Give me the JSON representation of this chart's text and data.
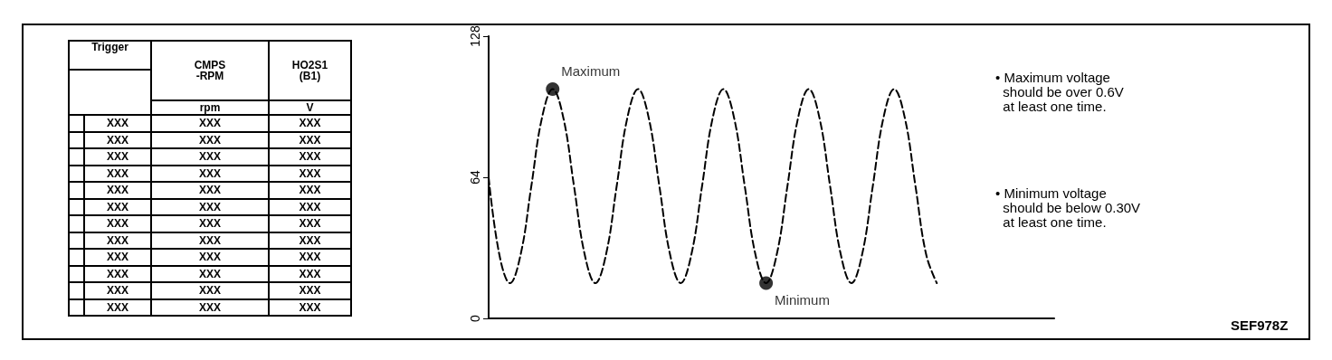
{
  "chart_data": [
    {
      "type": "other",
      "categories": [
        "Trigger",
        "CMPS\n-RPM",
        "HO2S1\n(B1)"
      ],
      "cell_labels": [
        [
          null,
          "rpm",
          "V"
        ],
        [
          "XXX",
          "XXX",
          "XXX"
        ],
        [
          "XXX",
          "XXX",
          "XXX"
        ],
        [
          "XXX",
          "XXX",
          "XXX"
        ],
        [
          "XXX",
          "XXX",
          "XXX"
        ],
        [
          "XXX",
          "XXX",
          "XXX"
        ],
        [
          "XXX",
          "XXX",
          "XXX"
        ],
        [
          "XXX",
          "XXX",
          "XXX"
        ],
        [
          "XXX",
          "XXX",
          "XXX"
        ],
        [
          "XXX",
          "XXX",
          "XXX"
        ],
        [
          "XXX",
          "XXX",
          "XXX"
        ],
        [
          "XXX",
          "XXX",
          "XXX"
        ],
        [
          "XXX",
          "XXX",
          "XXX"
        ]
      ]
    },
    {
      "type": "line",
      "categories": [
        null,
        null,
        null,
        null,
        null,
        null,
        null,
        null,
        null,
        null,
        null,
        null,
        null,
        null,
        null,
        null,
        null,
        null,
        null,
        null,
        null,
        null,
        null,
        null,
        null,
        null,
        null,
        null,
        null,
        null,
        null,
        null,
        null,
        null,
        null,
        null,
        null,
        null,
        null,
        null,
        null,
        null,
        null,
        null,
        null,
        null,
        null,
        null,
        null,
        null,
        null,
        null,
        null,
        null
      ],
      "series": [
        {
          "color": "#000000",
          "line_style": "dashed",
          "marker": "none",
          "values": [
            64,
            29,
            16,
            29,
            60,
            91,
            104,
            91,
            60,
            29,
            16,
            29,
            60,
            91,
            104,
            91,
            60,
            29,
            16,
            29,
            60,
            91,
            104,
            91,
            60,
            29,
            16,
            29,
            60,
            91,
            104,
            91,
            60,
            29,
            16,
            29,
            60,
            91,
            104,
            91,
            60,
            29,
            16,
            null,
            null,
            null,
            null,
            null,
            null,
            null,
            null,
            null,
            null,
            null
          ]
        },
        {
          "type": "scatter",
          "color": "#000000",
          "marker": "circle",
          "values": [
            null,
            null,
            null,
            null,
            null,
            null,
            104,
            null,
            null,
            null,
            null,
            null,
            null,
            null,
            null,
            null,
            null,
            null,
            null,
            null,
            null,
            null,
            null,
            null,
            null,
            null,
            16,
            null,
            null,
            null,
            null,
            null,
            null,
            null,
            null,
            null,
            null,
            null,
            null,
            null,
            null,
            null,
            null,
            null,
            null,
            null,
            null,
            null,
            null,
            null,
            null,
            null,
            null,
            null
          ],
          "value_labels": [
            null,
            null,
            null,
            null,
            null,
            null,
            "Maximum",
            null,
            null,
            null,
            null,
            null,
            null,
            null,
            null,
            null,
            null,
            null,
            null,
            null,
            null,
            null,
            null,
            null,
            null,
            null,
            "Minimum",
            null,
            null,
            null,
            null,
            null,
            null,
            null,
            null,
            null,
            null,
            null,
            null,
            null,
            null,
            null,
            null,
            null,
            null,
            null,
            null,
            null,
            null,
            null,
            null,
            null,
            null,
            null
          ]
        }
      ],
      "ylim": [
        0,
        128
      ],
      "yticks": [
        0,
        64,
        128
      ],
      "grid": false,
      "annotations": [
        "• Maximum voltage\n  should be over 0.6V\n  at least one time.",
        "• Minimum voltage\n  should be below 0.30V\n  at least one time.",
        "SEF978Z"
      ]
    }
  ]
}
